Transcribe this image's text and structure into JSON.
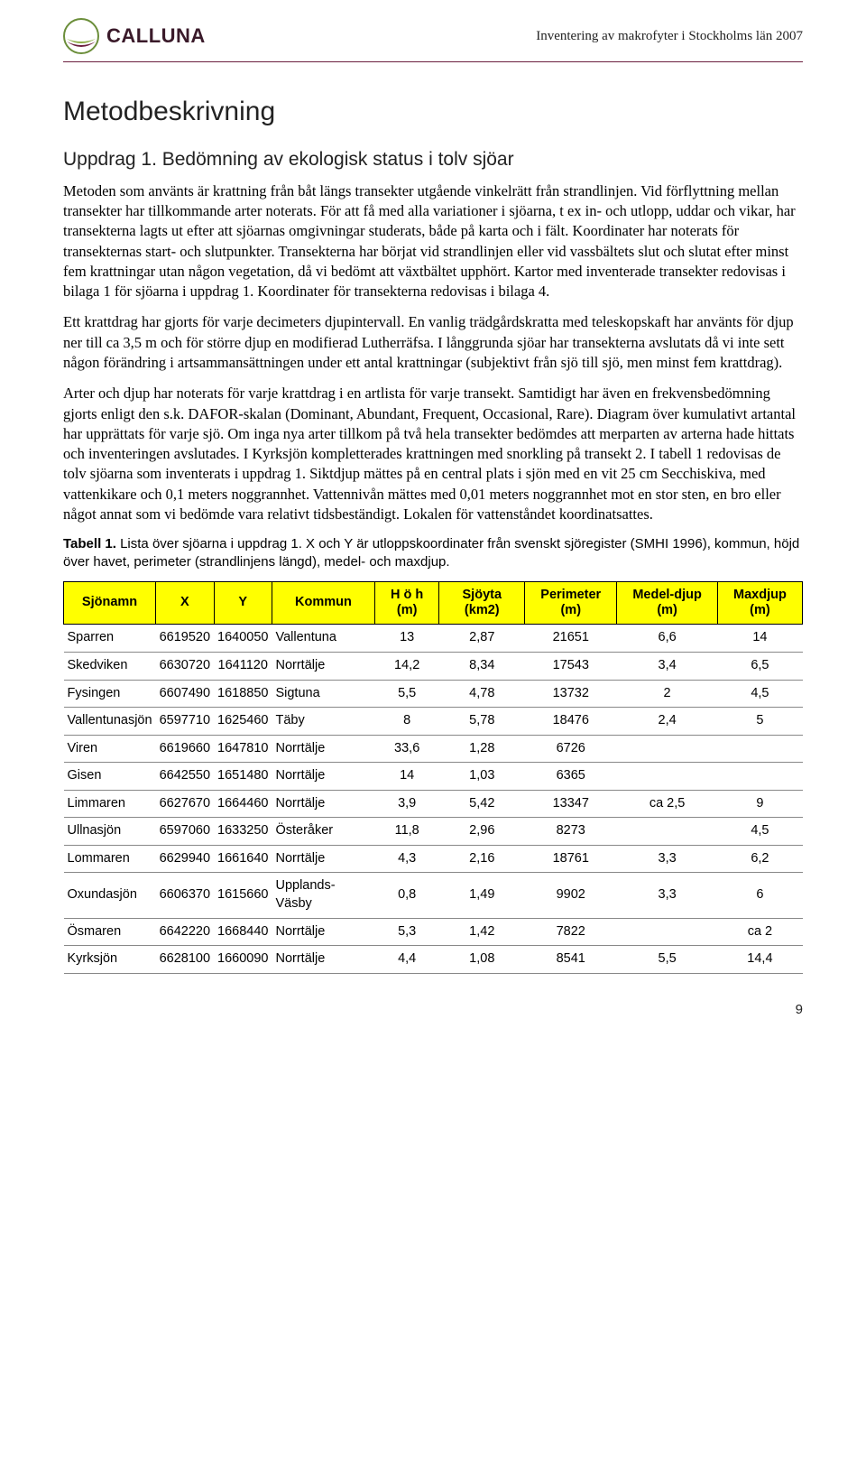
{
  "header": {
    "logo_text": "CALLUNA",
    "doc_title": "Inventering av makrofyter i Stockholms län 2007"
  },
  "section_title": "Metodbeskrivning",
  "subsection_title": "Uppdrag 1. Bedömning av ekologisk status i tolv sjöar",
  "paragraphs": [
    "Metoden som använts är krattning från båt längs transekter utgående vinkelrätt från strandlinjen. Vid förflyttning mellan transekter har tillkommande arter noterats. För att få med alla variationer i sjöarna, t ex in- och utlopp, uddar och vikar, har transekterna lagts ut efter att sjöarnas omgivningar studerats, både på karta och i fält. Koordinater har noterats för transekternas start- och slutpunkter. Transekterna har börjat vid strandlinjen eller vid vassbältets slut och slutat efter minst fem krattningar utan någon vegetation, då vi bedömt att växtbältet upphört. Kartor med inventerade transekter redovisas i bilaga 1 för sjöarna i uppdrag 1. Koordinater för transekterna redovisas i bilaga 4.",
    "Ett krattdrag har gjorts för varje decimeters djupintervall. En vanlig trädgårdskratta med teleskopskaft har använts för djup ner till ca 3,5 m och för större djup en modifierad Lutherräfsa. I långgrunda sjöar har transekterna avslutats då vi inte sett någon förändring i artsammansättningen under ett antal krattningar (subjektivt från sjö till sjö, men minst fem krattdrag).",
    "Arter och djup har noterats för varje krattdrag i en artlista för varje transekt. Samtidigt har även en frekvensbedömning gjorts enligt den s.k. DAFOR-skalan (Dominant, Abundant, Frequent, Occasional, Rare). Diagram över kumulativt artantal har upprättats för varje sjö. Om inga nya arter tillkom på två hela transekter bedömdes att merparten av arterna hade hittats och inventeringen avslutades. I Kyrksjön kompletterades krattningen med snorkling på transekt 2. I tabell 1 redovisas de tolv sjöarna som inventerats i uppdrag 1. Siktdjup mättes på en central plats i sjön med en vit 25 cm Secchiskiva, med vattenkikare och 0,1 meters noggrannhet. Vattennivån mättes med 0,01 meters noggrannhet mot en stor sten, en bro eller något annat som vi bedömde vara relativt tidsbeständigt. Lokalen för vattenståndet koordinatsattes."
  ],
  "table_caption": {
    "label": "Tabell 1.",
    "text": " Lista över sjöarna i uppdrag 1. X och Y är utloppskoordinater från svenskt sjöregister (SMHI 1996), kommun, höjd över havet, perimeter (strandlinjens längd), medel- och maxdjup."
  },
  "table": {
    "columns": [
      "Sjönamn",
      "X",
      "Y",
      "Kommun",
      "H ö h (m)",
      "Sjöyta (km2)",
      "Perimeter (m)",
      "Medel-djup (m)",
      "Maxdjup (m)"
    ],
    "rows": [
      [
        "Sparren",
        "6619520",
        "1640050",
        "Vallentuna",
        "13",
        "2,87",
        "21651",
        "6,6",
        "14"
      ],
      [
        "Skedviken",
        "6630720",
        "1641120",
        "Norrtälje",
        "14,2",
        "8,34",
        "17543",
        "3,4",
        "6,5"
      ],
      [
        "Fysingen",
        "6607490",
        "1618850",
        "Sigtuna",
        "5,5",
        "4,78",
        "13732",
        "2",
        "4,5"
      ],
      [
        "Vallentunasjön",
        "6597710",
        "1625460",
        "Täby",
        "8",
        "5,78",
        "18476",
        "2,4",
        "5"
      ],
      [
        "Viren",
        "6619660",
        "1647810",
        "Norrtälje",
        "33,6",
        "1,28",
        "6726",
        "",
        ""
      ],
      [
        "Gisen",
        "6642550",
        "1651480",
        "Norrtälje",
        "14",
        "1,03",
        "6365",
        "",
        ""
      ],
      [
        "Limmaren",
        "6627670",
        "1664460",
        "Norrtälje",
        "3,9",
        "5,42",
        "13347",
        "ca 2,5",
        "9"
      ],
      [
        "Ullnasjön",
        "6597060",
        "1633250",
        "Österåker",
        "11,8",
        "2,96",
        "8273",
        "",
        "4,5"
      ],
      [
        "Lommaren",
        "6629940",
        "1661640",
        "Norrtälje",
        "4,3",
        "2,16",
        "18761",
        "3,3",
        "6,2"
      ],
      [
        "Oxundasjön",
        "6606370",
        "1615660",
        "Upplands-Väsby",
        "0,8",
        "1,49",
        "9902",
        "3,3",
        "6"
      ],
      [
        "Ösmaren",
        "6642220",
        "1668440",
        "Norrtälje",
        "5,3",
        "1,42",
        "7822",
        "",
        "ca 2"
      ],
      [
        "Kyrksjön",
        "6628100",
        "1660090",
        "Norrtälje",
        "4,4",
        "1,08",
        "8541",
        "5,5",
        "14,4"
      ]
    ],
    "header_bg": "#ffff00",
    "border_color": "#000000",
    "row_border_color": "#888888"
  },
  "page_number": "9",
  "brand_color": "#6b1e3e"
}
